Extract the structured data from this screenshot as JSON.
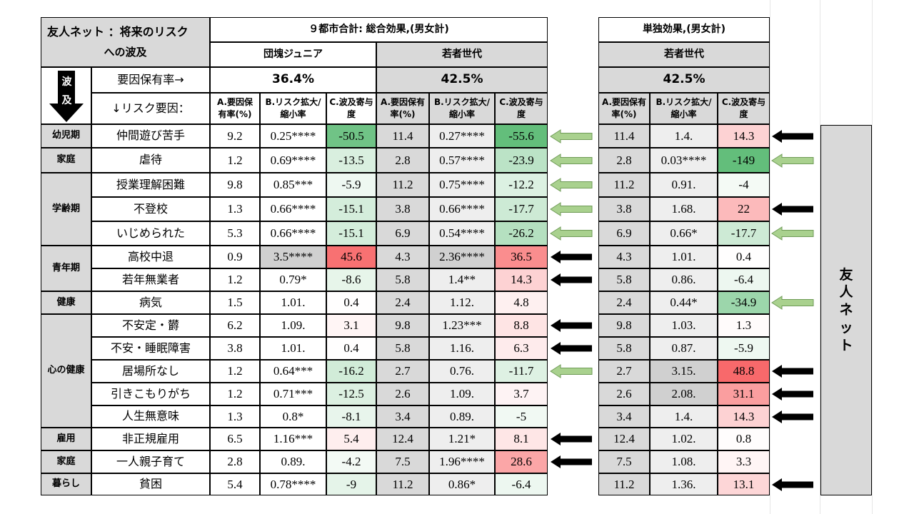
{
  "title_line1": "友人ネット ：将来のリスク",
  "title_line2": "への波及",
  "section_total": "９都市合計: 総合効果,(男女計)",
  "section_single": "単独効果,(男女計)",
  "group_dankai": "団塊ジュニア",
  "group_young": "若者世代",
  "group_young2": "若者世代",
  "rate_label": "要因保有率→",
  "rate_dankai": "36.4%",
  "rate_young": "42.5%",
  "rate_young2": "42.5%",
  "wave_top": "波",
  "wave_bottom": "及",
  "risk_factor_label": "↓リスク要因：",
  "col_headers": {
    "a": "A.要因保有率(%)",
    "b": "B.リスク拡大/縮小率",
    "c": "C.波及寄与度"
  },
  "vertical_label": [
    "友",
    "人",
    "ネ",
    "ッ",
    "ト"
  ],
  "categories": [
    {
      "label": "幼児期"
    },
    {
      "label": "家庭"
    },
    {
      "label": "学齢期"
    },
    {
      "label": "青年期"
    },
    {
      "label": "健康"
    },
    {
      "label": "心の健康"
    },
    {
      "label": "雇用"
    },
    {
      "label": "家庭"
    },
    {
      "label": "暮らし"
    }
  ],
  "rows": [
    {
      "factor": "仲間遊び苦手",
      "g1": [
        "9.2",
        "0.25****",
        "-50.5"
      ],
      "g2": [
        "11.4",
        "0.27****",
        "-55.6"
      ],
      "g3": [
        "11.4",
        "1.4.",
        "14.3"
      ],
      "arrow1": "green",
      "arrow2": "black"
    },
    {
      "factor": "虐待",
      "g1": [
        "1.2",
        "0.69****",
        "-13.5"
      ],
      "g2": [
        "2.8",
        "0.57****",
        "-23.9"
      ],
      "g3": [
        "2.8",
        "0.03****",
        "-149"
      ],
      "arrow1": "green",
      "arrow2": "green"
    },
    {
      "factor": "授業理解困難",
      "g1": [
        "9.8",
        "0.85***",
        "-5.9"
      ],
      "g2": [
        "11.2",
        "0.75****",
        "-12.2"
      ],
      "g3": [
        "11.2",
        "0.91.",
        "-4"
      ],
      "arrow1": "green",
      "arrow2": ""
    },
    {
      "factor": "不登校",
      "g1": [
        "1.3",
        "0.66****",
        "-15.1"
      ],
      "g2": [
        "3.8",
        "0.66****",
        "-17.7"
      ],
      "g3": [
        "3.8",
        "1.68.",
        "22"
      ],
      "arrow1": "green",
      "arrow2": "black"
    },
    {
      "factor": "いじめられた",
      "g1": [
        "5.3",
        "0.66****",
        "-15.1"
      ],
      "g2": [
        "6.9",
        "0.54****",
        "-26.2"
      ],
      "g3": [
        "6.9",
        "0.66*",
        "-17.7"
      ],
      "arrow1": "green",
      "arrow2": "green"
    },
    {
      "factor": "高校中退",
      "g1": [
        "0.9",
        "3.5****",
        "45.6"
      ],
      "g2": [
        "4.3",
        "2.36****",
        "36.5"
      ],
      "g3": [
        "4.3",
        "1.01.",
        "0.4"
      ],
      "arrow1": "black",
      "arrow2": ""
    },
    {
      "factor": "若年無業者",
      "g1": [
        "1.2",
        "0.79*",
        "-8.6"
      ],
      "g2": [
        "5.8",
        "1.4**",
        "14.3"
      ],
      "g3": [
        "5.8",
        "0.86.",
        "-6.4"
      ],
      "arrow1": "black",
      "arrow2": ""
    },
    {
      "factor": "病気",
      "g1": [
        "1.5",
        "1.01.",
        "0.4"
      ],
      "g2": [
        "2.4",
        "1.12.",
        "4.8"
      ],
      "g3": [
        "2.4",
        "0.44*",
        "-34.9"
      ],
      "arrow1": "",
      "arrow2": "green"
    },
    {
      "factor": "不安定・欝",
      "g1": [
        "6.2",
        "1.09.",
        "3.1"
      ],
      "g2": [
        "9.8",
        "1.23***",
        "8.8"
      ],
      "g3": [
        "9.8",
        "1.03.",
        "1.3"
      ],
      "arrow1": "black",
      "arrow2": ""
    },
    {
      "factor": "不安・睡眠障害",
      "g1": [
        "3.8",
        "1.01.",
        "0.4"
      ],
      "g2": [
        "5.8",
        "1.16.",
        "6.3"
      ],
      "g3": [
        "5.8",
        "0.87.",
        "-5.9"
      ],
      "arrow1": "black",
      "arrow2": ""
    },
    {
      "factor": "居場所なし",
      "g1": [
        "1.2",
        "0.64***",
        "-16.2"
      ],
      "g2": [
        "2.7",
        "0.76.",
        "-11.7"
      ],
      "g3": [
        "2.7",
        "3.15.",
        "48.8"
      ],
      "arrow1": "green",
      "arrow2": "black"
    },
    {
      "factor": "引きこもりがち",
      "g1": [
        "1.2",
        "0.71***",
        "-12.5"
      ],
      "g2": [
        "2.6",
        "1.09.",
        "3.7"
      ],
      "g3": [
        "2.6",
        "2.08.",
        "31.1"
      ],
      "arrow1": "",
      "arrow2": "black"
    },
    {
      "factor": "人生無意味",
      "g1": [
        "1.3",
        "0.8*",
        "-8.1"
      ],
      "g2": [
        "3.4",
        "0.89.",
        "-5"
      ],
      "g3": [
        "3.4",
        "1.4.",
        "14.3"
      ],
      "arrow1": "",
      "arrow2": "black"
    },
    {
      "factor": "非正規雇用",
      "g1": [
        "6.5",
        "1.16***",
        "5.4"
      ],
      "g2": [
        "12.4",
        "1.21*",
        "8.1"
      ],
      "g3": [
        "12.4",
        "1.02.",
        "0.8"
      ],
      "arrow1": "black",
      "arrow2": ""
    },
    {
      "factor": "一人親子育て",
      "g1": [
        "2.8",
        "0.89.",
        "-4.2"
      ],
      "g2": [
        "7.5",
        "1.96****",
        "28.6"
      ],
      "g3": [
        "7.5",
        "1.08.",
        "3.3"
      ],
      "arrow1": "black",
      "arrow2": ""
    },
    {
      "factor": "貧困",
      "g1": [
        "5.4",
        "0.78****",
        "-9"
      ],
      "g2": [
        "11.2",
        "0.86*",
        "-6.4"
      ],
      "g3": [
        "11.2",
        "1.36.",
        "13.1"
      ],
      "arrow1": "",
      "arrow2": "black"
    }
  ],
  "colors": {
    "header_gray": "#d9d9d9",
    "light_gray": "#eeeeee",
    "green_strong": "#63be7b",
    "red_strong": "#f8696b",
    "arrow_green": "#a9d18e",
    "arrow_black": "#000000"
  }
}
